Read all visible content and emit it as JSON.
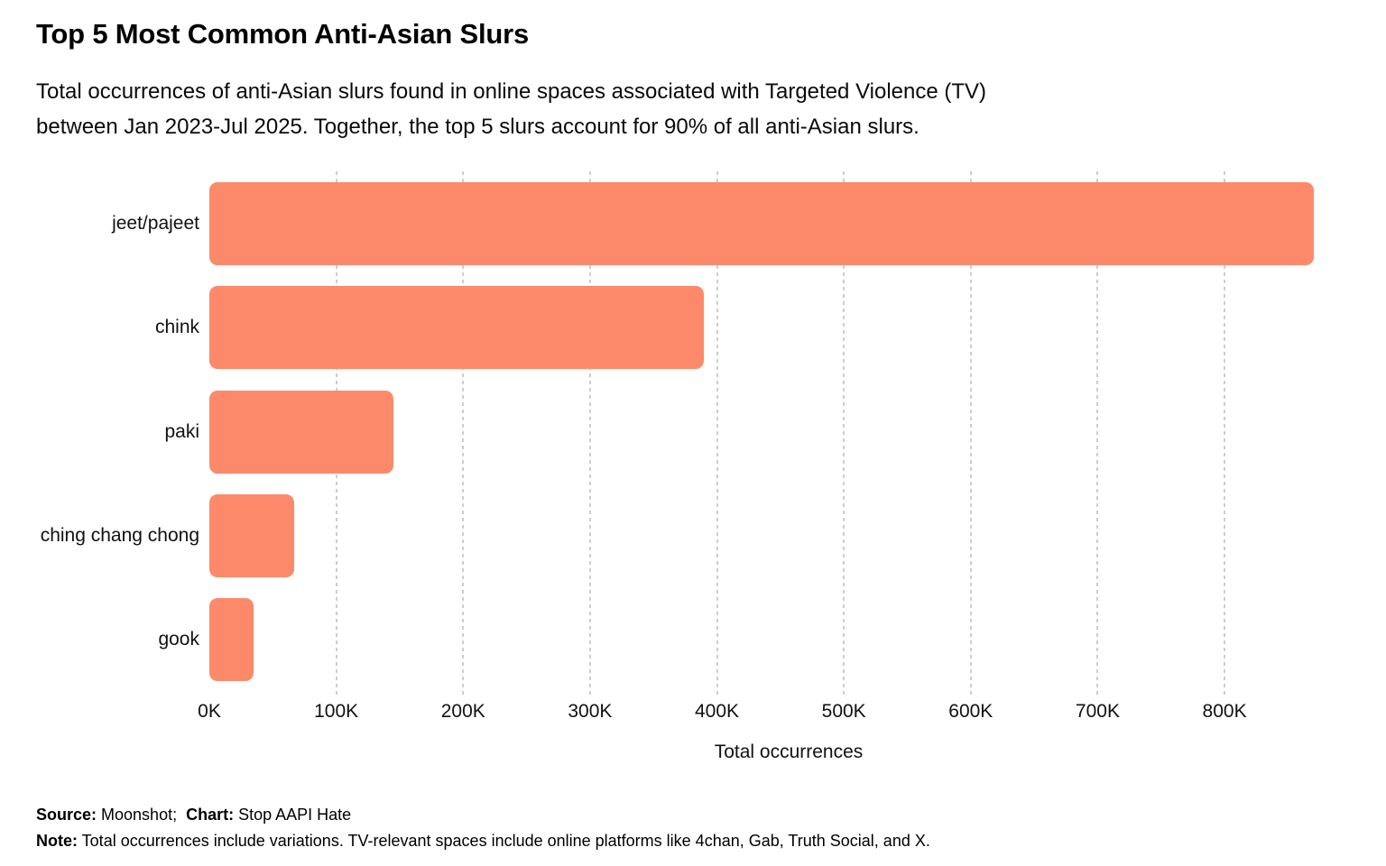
{
  "page": {
    "title": "Top 5 Most Common Anti-Asian Slurs",
    "subtitle_lines": [
      "Total occurrences of anti-Asian slurs found in online spaces associated with Targeted Violence (TV)",
      "between Jan 2023-Jul 2025. Together, the top 5 slurs account for 90% of all anti-Asian slurs."
    ]
  },
  "chart_data": {
    "type": "bar",
    "orientation": "horizontal",
    "title": "Top 5 Most Common Anti-Asian Slurs",
    "categories": [
      "jeet/pajeet",
      "chink",
      "paki",
      "ching chang chong",
      "gook"
    ],
    "values": [
      870000,
      390000,
      145000,
      67000,
      35000
    ],
    "xlabel": "Total occurrences",
    "x_ticks": [
      {
        "label": "0K",
        "value": 0
      },
      {
        "label": "100K",
        "value": 100000
      },
      {
        "label": "200K",
        "value": 200000
      },
      {
        "label": "300K",
        "value": 300000
      },
      {
        "label": "400K",
        "value": 400000
      },
      {
        "label": "500K",
        "value": 500000
      },
      {
        "label": "600K",
        "value": 600000
      },
      {
        "label": "700K",
        "value": 700000
      },
      {
        "label": "800K",
        "value": 800000
      }
    ],
    "xlim": [
      0,
      913000
    ],
    "bar_color": "#FC8A6A",
    "grid": {
      "axis": "x",
      "style": "dashed",
      "color": "#cdcdcd",
      "lines_at": [
        100000,
        200000,
        300000,
        400000,
        500000,
        600000,
        700000,
        800000
      ]
    },
    "legend": "none"
  },
  "footer": {
    "source_label": "Source:",
    "source_value": " Moonshot;  ",
    "chart_label": "Chart:",
    "chart_value": " Stop AAPI Hate",
    "note_label": "Note:",
    "note_value": " Total occurrences include variations. TV-relevant spaces include online platforms like 4chan, Gab, Truth Social, and X."
  }
}
